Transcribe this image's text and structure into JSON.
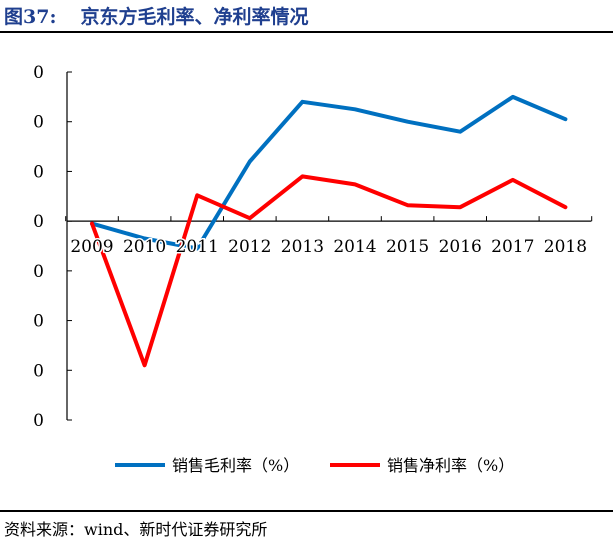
{
  "figure": {
    "number": "图37:",
    "title": "京东方毛利率、净利率情况"
  },
  "source": "资料来源：wind、新时代证券研究所",
  "chart_data": {
    "type": "line",
    "title": "京东方毛利率、净利率情况",
    "categories": [
      "2009",
      "2010",
      "2011",
      "2012",
      "2013",
      "2014",
      "2015",
      "2016",
      "2017",
      "2018"
    ],
    "y_tick_labels": [
      "0",
      "0",
      "0",
      "0",
      "0",
      "0",
      "0",
      "0"
    ],
    "ylim": [
      -40,
      30
    ],
    "y_tick_step": 10,
    "grid": false,
    "legend_position": "bottom",
    "series": [
      {
        "name": "销售毛利率（%）",
        "color": "#0070C0",
        "values": [
          -0.5,
          -3.5,
          -5.5,
          12,
          24,
          22.5,
          20,
          18,
          25,
          20.5
        ]
      },
      {
        "name": "销售净利率（%）",
        "color": "#FF0000",
        "values": [
          -0.5,
          -29,
          5.2,
          0.6,
          9,
          7.4,
          3.2,
          2.8,
          8.3,
          2.8
        ]
      }
    ]
  }
}
